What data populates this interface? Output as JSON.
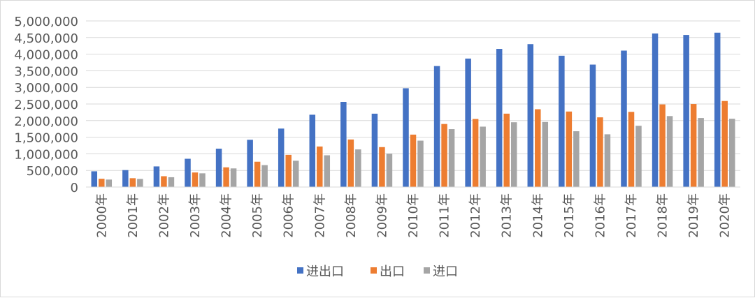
{
  "chart_data": {
    "type": "bar",
    "title": "",
    "xlabel": "",
    "ylabel": "",
    "ylim": [
      0,
      5000000
    ],
    "y_ticks": [
      "0",
      "500,000",
      "1,000,000",
      "1,500,000",
      "2,000,000",
      "2,500,000",
      "3,000,000",
      "3,500,000",
      "4,000,000",
      "4,500,000",
      "5,000,000"
    ],
    "grid": true,
    "legend_position": "bottom",
    "categories": [
      "2000年",
      "2001年",
      "2002年",
      "2003年",
      "2004年",
      "2005年",
      "2006年",
      "2007年",
      "2008年",
      "2009年",
      "2010年",
      "2011年",
      "2012年",
      "2013年",
      "2014年",
      "2015年",
      "2016年",
      "2017年",
      "2018年",
      "2019年",
      "2020年"
    ],
    "series": [
      {
        "name": "进出口",
        "color": "#4472C4",
        "values": [
          474000,
          510000,
          621000,
          851000,
          1155000,
          1422000,
          1760000,
          2177000,
          2563000,
          2208000,
          2974000,
          3642000,
          3867000,
          4159000,
          4302000,
          3953000,
          3686000,
          4107000,
          4622000,
          4578000,
          4647000
        ]
      },
      {
        "name": "出口",
        "color": "#ED7D31",
        "values": [
          249000,
          266000,
          326000,
          438000,
          593000,
          762000,
          969000,
          1220000,
          1431000,
          1202000,
          1578000,
          1898000,
          2049000,
          2209000,
          2342000,
          2273000,
          2098000,
          2263000,
          2487000,
          2499000,
          2590000
        ]
      },
      {
        "name": "进口",
        "color": "#A5A5A5",
        "values": [
          225000,
          244000,
          295000,
          413000,
          561000,
          660000,
          792000,
          956000,
          1133000,
          1006000,
          1396000,
          1743000,
          1818000,
          1950000,
          1959000,
          1680000,
          1588000,
          1844000,
          2136000,
          2078000,
          2056000
        ]
      }
    ]
  }
}
